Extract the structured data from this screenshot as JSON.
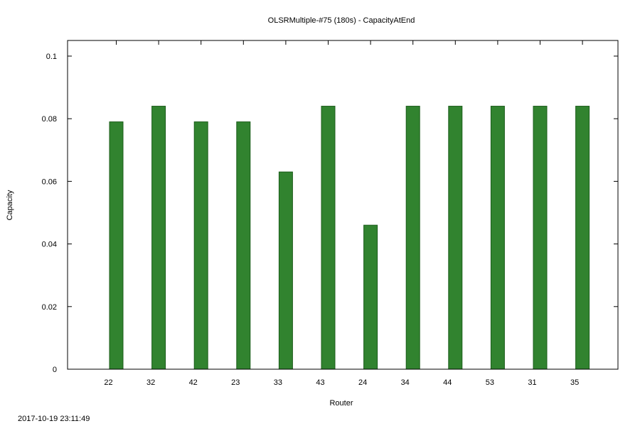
{
  "chart_data": {
    "type": "bar",
    "title": "OLSRMultiple-#75 (180s) - CapacityAtEnd",
    "xlabel": "Router",
    "ylabel": "Capacity",
    "categories": [
      "22",
      "32",
      "42",
      "23",
      "33",
      "43",
      "24",
      "34",
      "44",
      "53",
      "31",
      "35"
    ],
    "values": [
      0.079,
      0.084,
      0.079,
      0.079,
      0.063,
      0.084,
      0.046,
      0.084,
      0.084,
      0.084,
      0.084,
      0.084
    ],
    "ylim": [
      0,
      0.1
    ],
    "yticks": [
      "0",
      "0.02",
      "0.04",
      "0.06",
      "0.08",
      "0.1"
    ],
    "grid": false,
    "legend": "none",
    "bar_color": "#31832f",
    "bar_edge_color": "#1b5c1a"
  },
  "timestamp": "2017-10-19 23:11:49"
}
